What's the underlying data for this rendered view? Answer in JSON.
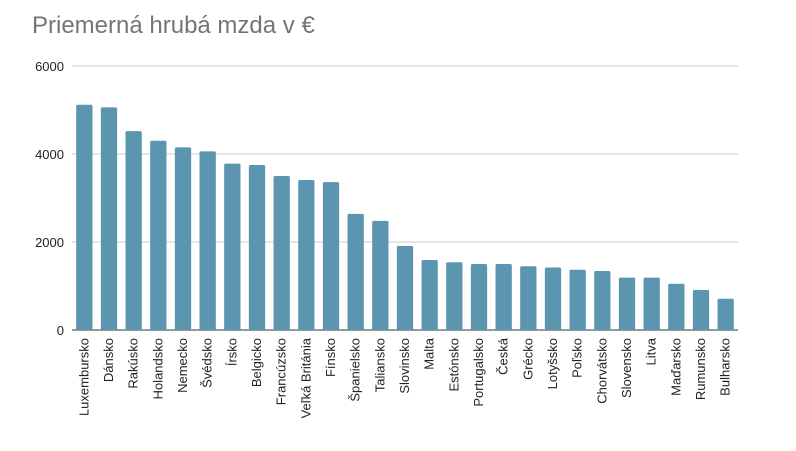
{
  "chart_data": {
    "type": "bar",
    "title": "Priemerná hrubá mzda v €",
    "xlabel": "",
    "ylabel": "",
    "ylim": [
      0,
      6000
    ],
    "yticks": [
      0,
      2000,
      4000,
      6000
    ],
    "grid": true,
    "legend": "none",
    "bar_color": "#5b95b0",
    "categories": [
      "Luxembursko",
      "Dánsko",
      "Rakúsko",
      "Holandsko",
      "Nemecko",
      "Švédsko",
      "Írsko",
      "Belgicko",
      "Francúzsko",
      "Veľká Británia",
      "Fínsko",
      "Španielsko",
      "Taliansko",
      "Slovinsko",
      "Malta",
      "Estónsko",
      "Portugalsko",
      "Česká",
      "Grécko",
      "Lotyšsko",
      "Poľsko",
      "Chorvátsko",
      "Slovensko",
      "Litva",
      "Maďarsko",
      "Rumunsko",
      "Bulharsko"
    ],
    "values": [
      5120,
      5060,
      4520,
      4300,
      4150,
      4060,
      3780,
      3750,
      3500,
      3410,
      3360,
      2640,
      2480,
      1910,
      1590,
      1540,
      1500,
      1500,
      1450,
      1420,
      1370,
      1340,
      1190,
      1190,
      1050,
      910,
      710
    ]
  }
}
